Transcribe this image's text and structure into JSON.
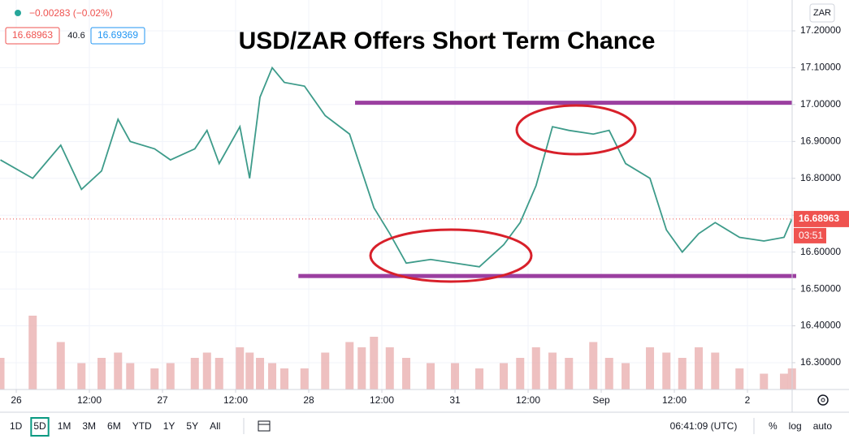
{
  "chart_data": {
    "type": "line",
    "title": "USD/ZAR Offers Short Term Chance",
    "header": {
      "change": "−0.00283 (−0.02%)",
      "bid": "16.68963",
      "spread": "40.6",
      "ask": "16.69369"
    },
    "currency": "ZAR",
    "x": [
      -2.6,
      2.7,
      7.3,
      10.7,
      14,
      16.7,
      18.7,
      22.7,
      25.3,
      29.3,
      31.3,
      33.3,
      36.7,
      38.3,
      40,
      42,
      44,
      47.3,
      50.7,
      54.7,
      56.7,
      58.7,
      61.3,
      64,
      68,
      72,
      76,
      80,
      82.7,
      85.3,
      88,
      90.7,
      94.7,
      97.3,
      100,
      104,
      106.7,
      109.3,
      112,
      114.7,
      118.7,
      122.7,
      126,
      127.3
    ],
    "series": [
      {
        "name": "USD/ZAR",
        "color": "#3d9b8a",
        "values": [
          16.85,
          16.8,
          16.89,
          16.77,
          16.82,
          16.96,
          16.9,
          16.88,
          16.85,
          16.88,
          16.93,
          16.84,
          16.94,
          16.8,
          17.02,
          17.1,
          17.06,
          17.05,
          16.97,
          16.92,
          16.82,
          16.72,
          16.65,
          16.57,
          16.58,
          16.57,
          16.56,
          16.62,
          16.68,
          16.78,
          16.94,
          16.93,
          16.92,
          16.93,
          16.84,
          16.8,
          16.66,
          16.6,
          16.65,
          16.68,
          16.64,
          16.63,
          16.64,
          16.69
        ]
      },
      {
        "name": "Volume",
        "color": "#eab0b0",
        "axis": "y2",
        "values": [
          30,
          70,
          45,
          25,
          30,
          35,
          25,
          20,
          25,
          30,
          35,
          30,
          40,
          35,
          30,
          25,
          20,
          20,
          35,
          45,
          40,
          50,
          40,
          30,
          25,
          25,
          20,
          25,
          30,
          40,
          35,
          30,
          45,
          30,
          25,
          40,
          35,
          30,
          40,
          35,
          20,
          15,
          15,
          20
        ]
      }
    ],
    "xlim": [
      -2.67,
      127.33
    ],
    "xticks": [
      {
        "value": 0,
        "label": "26"
      },
      {
        "value": 12,
        "label": "12:00"
      },
      {
        "value": 24,
        "label": "27"
      },
      {
        "value": 36,
        "label": "12:00"
      },
      {
        "value": 48,
        "label": "28"
      },
      {
        "value": 60,
        "label": "12:00"
      },
      {
        "value": 72,
        "label": "31"
      },
      {
        "value": 84,
        "label": "12:00"
      },
      {
        "value": 96,
        "label": "Sep"
      },
      {
        "value": 108,
        "label": "12:00"
      },
      {
        "value": 120,
        "label": "2"
      }
    ],
    "ylim": [
      16.2273,
      17.2836
    ],
    "yticks": [
      {
        "value": 16.3,
        "label": "16.30000"
      },
      {
        "value": 16.4,
        "label": "16.40000"
      },
      {
        "value": 16.5,
        "label": "16.50000"
      },
      {
        "value": 16.6,
        "label": "16.60000"
      },
      {
        "value": 16.7,
        "label": "16.70000"
      },
      {
        "value": 16.8,
        "label": "16.80000"
      },
      {
        "value": 16.9,
        "label": "16.90000"
      },
      {
        "value": 17.0,
        "label": "17.00000"
      },
      {
        "value": 17.1,
        "label": "17.10000"
      },
      {
        "value": 17.2,
        "label": "17.20000"
      }
    ],
    "y2lim": [
      0,
      100
    ],
    "grid": true,
    "last_price": 16.68963,
    "countdown": "03:51",
    "levels": [
      {
        "value": 17.005,
        "xrange": [
          55.6,
          127.3
        ],
        "color": "#9b3fa0"
      },
      {
        "value": 16.535,
        "xrange": [
          46.3,
          128
        ],
        "color": "#9b3fa0"
      }
    ]
  },
  "toolbar": {
    "ranges": [
      "1D",
      "5D",
      "1M",
      "3M",
      "6M",
      "YTD",
      "1Y",
      "5Y",
      "All"
    ],
    "clock": "06:41:09 (UTC)",
    "options": [
      "%",
      "log",
      "auto"
    ]
  }
}
